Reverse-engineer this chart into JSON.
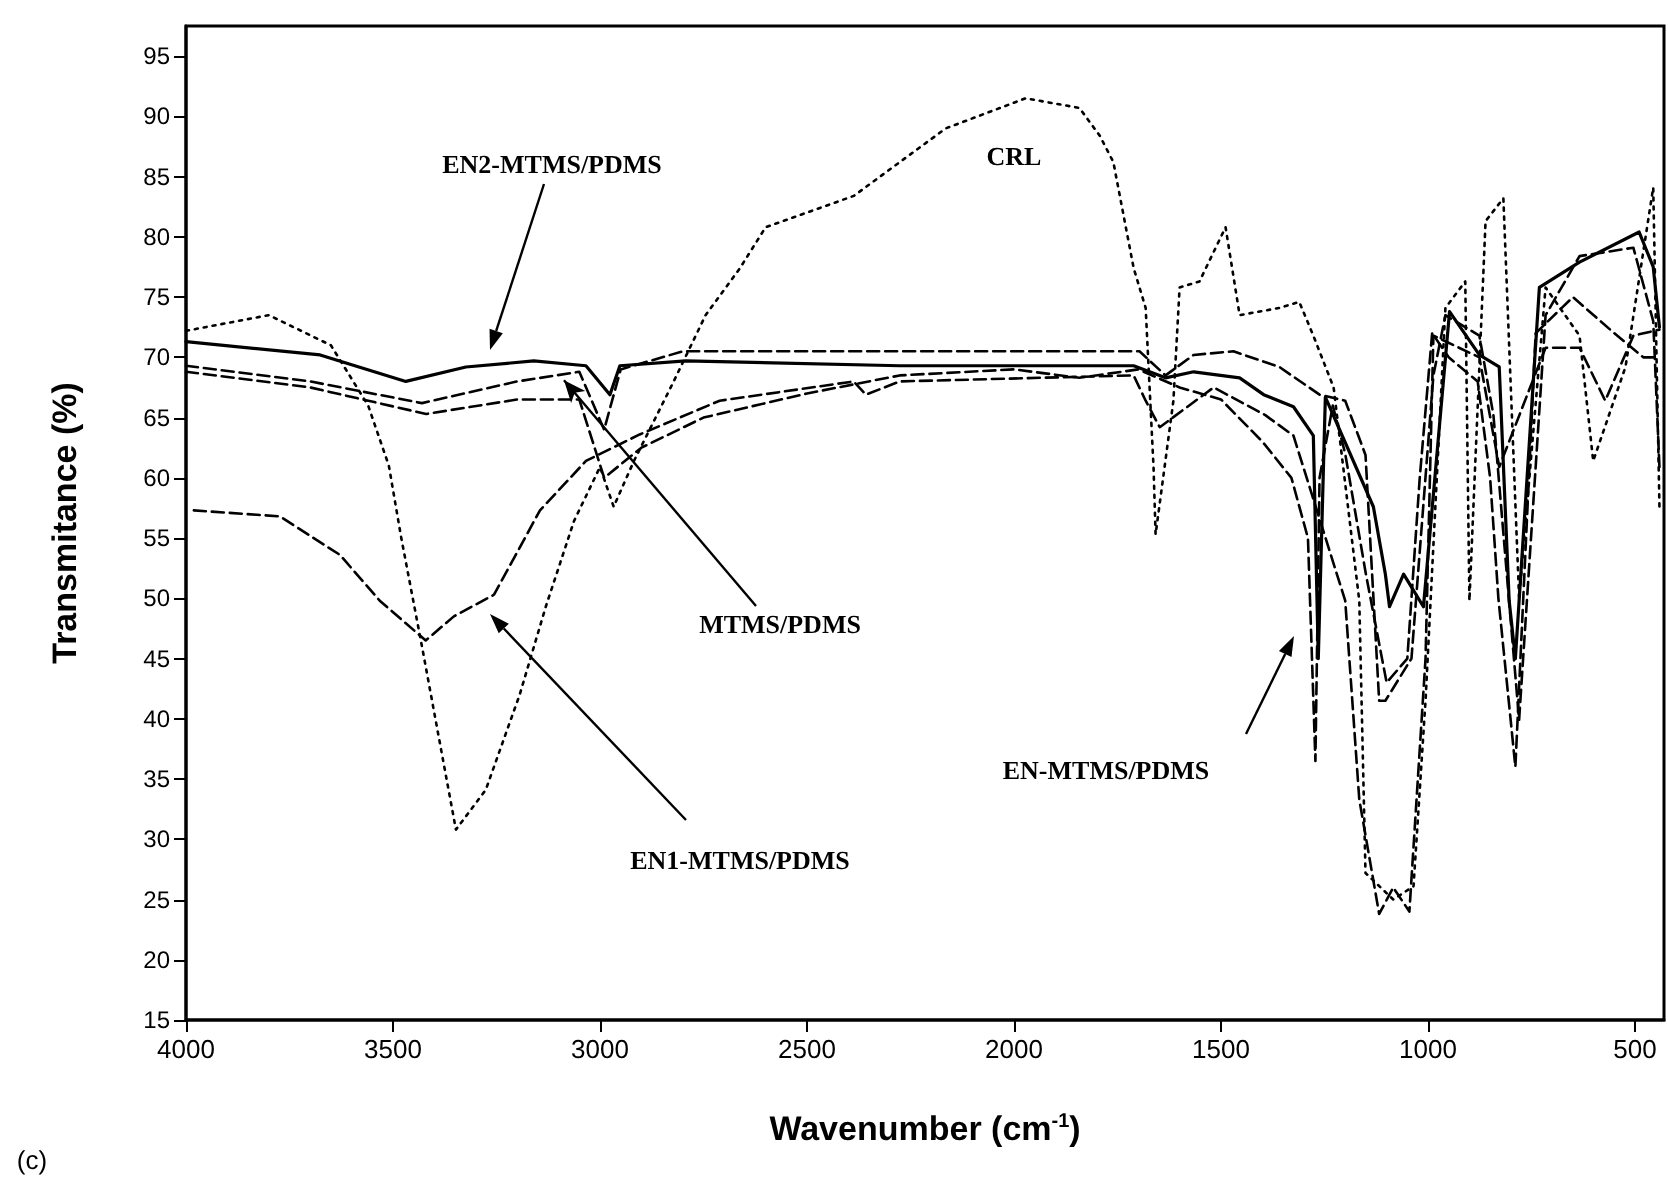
{
  "chart_data": {
    "type": "line",
    "xlabel": "Wavenumber (cm$^{-1}$)",
    "ylabel": "Transmitance (%)",
    "xlim": [
      4000,
      430
    ],
    "xticks": [
      4000,
      3500,
      3000,
      2500,
      2000,
      1500,
      1000,
      500
    ],
    "ylim": [
      15,
      97.5
    ],
    "yticks": [
      15,
      20,
      25,
      30,
      35,
      40,
      45,
      50,
      55,
      60,
      65,
      70,
      75,
      80,
      85,
      90,
      95
    ],
    "grid": false,
    "marker": "none",
    "series": [
      {
        "color": "#000000",
        "line_style": "solid",
        "x": [
          4000,
          3676,
          3469,
          3324,
          3160,
          3034,
          2976,
          2952,
          2793,
          2276,
          1711,
          1634,
          1566,
          1455,
          1397,
          1325,
          1277,
          1265,
          1248,
          1132,
          1103,
          1093,
          1059,
          1011,
          948,
          876,
          828,
          804,
          789,
          731,
          634,
          490,
          456,
          441
        ],
        "values": [
          71.3,
          70.2,
          68,
          69.2,
          69.7,
          69.3,
          66.9,
          69.3,
          69.7,
          69.3,
          69.3,
          68.3,
          68.8,
          68.3,
          66.9,
          65.9,
          63.5,
          45,
          66.7,
          57.6,
          52,
          49.3,
          52,
          49.3,
          73.8,
          70.2,
          69.2,
          49.8,
          45,
          75.8,
          77.9,
          80.4,
          77.5,
          72.5
        ]
      },
      {
        "color": "#000000",
        "line_style": "dashed",
        "x": [
          4000,
          3700,
          3430,
          3200,
          3050,
          2990,
          2950,
          2800,
          2276,
          1697,
          1634,
          1566,
          1470,
          1359,
          1262,
          1200,
          1151,
          1118,
          1103,
          1040,
          987,
          958,
          876,
          842,
          780,
          716,
          634,
          504,
          456,
          441
        ],
        "values": [
          69.3,
          68,
          66.2,
          68,
          68.8,
          64,
          69,
          70.5,
          70.5,
          70.5,
          68.5,
          70.2,
          70.5,
          69.2,
          66.9,
          66.4,
          61.9,
          41.5,
          41.5,
          45,
          68.5,
          73.5,
          71.8,
          65.2,
          39.9,
          73.5,
          78.4,
          79.1,
          73,
          60.9
        ]
      },
      {
        "color": "#000000",
        "line_style": "dashed",
        "x": [
          3981,
          3773,
          3628,
          3532,
          3421,
          3353,
          3256,
          3145,
          3034,
          2904,
          2711,
          2387,
          2358,
          2276,
          1711,
          1682,
          1648,
          1518,
          1393,
          1325,
          1200,
          1166,
          1118,
          1084,
          1045,
          1006,
          987,
          876,
          828,
          716,
          634,
          572,
          504,
          441
        ],
        "values": [
          57.3,
          56.8,
          53.6,
          49.8,
          46.5,
          48.5,
          50.3,
          57.3,
          61.4,
          63.6,
          66.4,
          68,
          66.9,
          68,
          68.5,
          66.4,
          64.2,
          67.5,
          65.2,
          63.5,
          49.8,
          33.3,
          23.8,
          26,
          24,
          45,
          71.8,
          70,
          60.9,
          70.8,
          70.8,
          66.4,
          71.8,
          72.3
        ]
      },
      {
        "color": "#000000",
        "line_style": "dashed",
        "x": [
          4000,
          3700,
          3420,
          3200,
          3050,
          2990,
          2900,
          2750,
          2500,
          2276,
          2000,
          1842,
          1700,
          1600,
          1500,
          1400,
          1330,
          1290,
          1272,
          1262,
          1230,
          1200,
          1150,
          1100,
          1050,
          1020,
          990,
          950,
          880,
          850,
          830,
          789,
          740,
          650,
          550,
          480,
          441
        ],
        "values": [
          68.8,
          67.5,
          65.3,
          66.5,
          66.5,
          60,
          62.5,
          65,
          67,
          68.5,
          69,
          68.3,
          69,
          67.5,
          66.5,
          63,
          60,
          55,
          36.5,
          60,
          66,
          62,
          52,
          43,
          45,
          60,
          72,
          70,
          68,
          60,
          50,
          36,
          72,
          75,
          72,
          70,
          70
        ]
      },
      {
        "color": "#000000",
        "line_style": "dotted",
        "x": [
          4000,
          3800,
          3650,
          3560,
          3510,
          3480,
          3430,
          3348,
          3276,
          3194,
          3131,
          3063,
          3000,
          2967,
          2918,
          2822,
          2745,
          2662,
          2600,
          2387,
          2276,
          2165,
          1972,
          1842,
          1793,
          1760,
          1711,
          1682,
          1663,
          1658,
          1615,
          1600,
          1552,
          1489,
          1455,
          1359,
          1311,
          1277,
          1228,
          1166,
          1151,
          1084,
          1035,
          1006,
          958,
          910,
          900,
          861,
          818,
          780,
          716,
          634,
          601,
          523,
          456,
          441
        ],
        "values": [
          72.2,
          73.5,
          71,
          66,
          61,
          55,
          46,
          30.8,
          34.1,
          42,
          49.3,
          56.4,
          60.9,
          57.6,
          61.4,
          68,
          73.5,
          77.4,
          80.8,
          83.4,
          86.2,
          89,
          91.5,
          90.7,
          88.4,
          86.2,
          77.4,
          74.1,
          60.9,
          55.3,
          66.4,
          75.8,
          76.3,
          80.8,
          73.5,
          74.1,
          74.6,
          71.8,
          67.5,
          49.8,
          27.2,
          25,
          26.1,
          41.5,
          74.1,
          76.3,
          49.8,
          81.3,
          83.2,
          50,
          75.8,
          71.8,
          61.4,
          69.2,
          84.1,
          57.6
        ]
      }
    ],
    "annotations": [
      "EN2-MTMS/PDMS",
      {
        "text": "MTMS/PDMS",
        "x": 3087,
        "y": 68.1
      },
      "EN1-MTMS/PDMS",
      "EN-MTMS/PDMS",
      "CRL",
      "(c)"
    ]
  }
}
